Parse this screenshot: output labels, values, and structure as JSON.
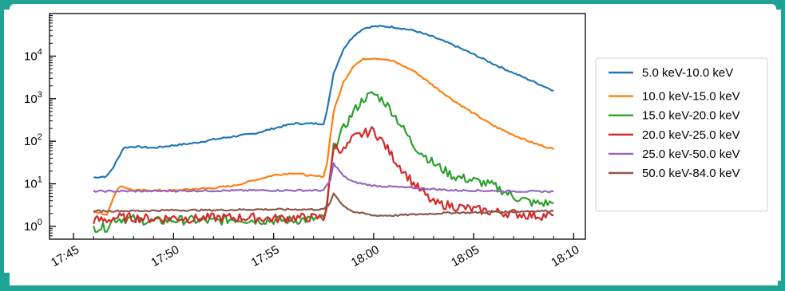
{
  "chart_data": {
    "type": "line",
    "title": "",
    "xlabel": "",
    "ylabel": "",
    "yscale": "log",
    "ylim": [
      0.5,
      100000
    ],
    "x_range": [
      "17:46",
      "18:09"
    ],
    "xlim": [
      "17:45",
      "18:10"
    ],
    "x_ticks": [
      "17:45",
      "17:50",
      "17:55",
      "18:00",
      "18:05",
      "18:10"
    ],
    "y_ticks": [
      {
        "value": 1,
        "base": "10",
        "exp": "0"
      },
      {
        "value": 10,
        "base": "10",
        "exp": "1"
      },
      {
        "value": 100,
        "base": "10",
        "exp": "2"
      },
      {
        "value": 1000,
        "base": "10",
        "exp": "3"
      },
      {
        "value": 10000,
        "base": "10",
        "exp": "4"
      }
    ],
    "grid": false,
    "legend_position": "right",
    "series": [
      {
        "name": "5.0 keV-10.0 keV",
        "color": "#1f77b4",
        "x": [
          "17:46",
          "17:46:40",
          "17:47",
          "17:47:30",
          "17:48",
          "17:49",
          "17:50",
          "17:51",
          "17:52",
          "17:53",
          "17:54",
          "17:55",
          "17:56",
          "17:57",
          "17:57:30",
          "17:57:40",
          "17:58",
          "17:58:30",
          "17:59",
          "17:59:30",
          "18:00",
          "18:00:30",
          "18:01",
          "18:02",
          "18:03",
          "18:04",
          "18:05",
          "18:06",
          "18:07",
          "18:08",
          "18:09"
        ],
        "y": [
          14,
          15,
          25,
          70,
          75,
          70,
          80,
          90,
          110,
          130,
          150,
          200,
          260,
          260,
          260,
          500,
          4000,
          15000,
          30000,
          45000,
          50000,
          50000,
          48000,
          40000,
          28000,
          18000,
          11000,
          6500,
          4000,
          2500,
          1550
        ]
      },
      {
        "name": "10.0 keV-15.0 keV",
        "color": "#ff7f0e",
        "x": [
          "17:46",
          "17:46:40",
          "17:47",
          "17:47:20",
          "17:48",
          "17:49",
          "17:50",
          "17:51",
          "17:52",
          "17:53",
          "17:54",
          "17:55",
          "17:56",
          "17:57",
          "17:57:30",
          "17:57:40",
          "17:58",
          "17:58:30",
          "17:59",
          "17:59:30",
          "18:00",
          "18:00:30",
          "18:01",
          "18:02",
          "18:03",
          "18:04",
          "18:05",
          "18:06",
          "18:07",
          "18:08",
          "18:09"
        ],
        "y": [
          2.2,
          1.9,
          5,
          9,
          7,
          7,
          7,
          7.5,
          8,
          9,
          12,
          16,
          18,
          15,
          15,
          30,
          500,
          2500,
          6000,
          8500,
          9000,
          8500,
          7500,
          4500,
          2000,
          900,
          450,
          230,
          140,
          90,
          65
        ]
      },
      {
        "name": "15.0 keV-20.0 keV",
        "color": "#2ca02c",
        "x": [
          "17:46",
          "17:46:40",
          "17:47",
          "17:48",
          "17:49",
          "17:50",
          "17:51",
          "17:52",
          "17:53",
          "17:54",
          "17:55",
          "17:56",
          "17:57",
          "17:57:30",
          "17:57:40",
          "17:58",
          "17:58:30",
          "17:59",
          "17:59:30",
          "18:00",
          "18:00:30",
          "18:01",
          "18:02",
          "18:03",
          "18:04",
          "18:05",
          "18:06",
          "18:07",
          "18:08",
          "18:09"
        ],
        "y": [
          0.95,
          0.95,
          1.5,
          1.5,
          1.3,
          1.4,
          1.4,
          1.3,
          1.5,
          1.4,
          1.4,
          1.4,
          1.5,
          1.5,
          3,
          70,
          200,
          500,
          1000,
          1300,
          900,
          450,
          80,
          30,
          15,
          12,
          9,
          5,
          3.5,
          3.5
        ]
      },
      {
        "name": "20.0 keV-25.0 keV",
        "color": "#d62728",
        "x": [
          "17:46",
          "17:46:40",
          "17:47",
          "17:48",
          "17:49",
          "17:50",
          "17:51",
          "17:52",
          "17:53",
          "17:54",
          "17:55",
          "17:56",
          "17:57",
          "17:57:30",
          "17:57:40",
          "17:58",
          "17:58:30",
          "17:59",
          "17:59:30",
          "18:00",
          "18:00:30",
          "18:01",
          "18:02",
          "18:03",
          "18:04",
          "18:05",
          "18:06",
          "18:07",
          "18:08",
          "18:09"
        ],
        "y": [
          1.4,
          1.4,
          1.6,
          1.6,
          1.5,
          1.6,
          1.5,
          1.6,
          1.6,
          1.6,
          1.5,
          1.6,
          1.6,
          1.6,
          3,
          80,
          60,
          120,
          150,
          180,
          90,
          40,
          10,
          3.5,
          3,
          2.5,
          2.2,
          2,
          1.8,
          1.8
        ]
      },
      {
        "name": "25.0 keV-50.0 keV",
        "color": "#9467bd",
        "x": [
          "17:46",
          "17:48",
          "17:50",
          "17:52",
          "17:54",
          "17:56",
          "17:57:30",
          "17:57:50",
          "17:58",
          "17:58:30",
          "17:59",
          "18:00",
          "18:01",
          "18:02",
          "18:03",
          "18:04",
          "18:05",
          "18:06",
          "18:07",
          "18:08",
          "18:09"
        ],
        "y": [
          6.7,
          6.7,
          6.8,
          6.9,
          7,
          7,
          7,
          12,
          30,
          15,
          11,
          9,
          8.5,
          8,
          7.5,
          7,
          7,
          6.8,
          6.7,
          6.6,
          6.6
        ]
      },
      {
        "name": "50.0 keV-84.0 keV",
        "color": "#8c564b",
        "x": [
          "17:46",
          "17:48",
          "17:50",
          "17:52",
          "17:54",
          "17:56",
          "17:57:30",
          "17:57:50",
          "17:58",
          "17:58:30",
          "17:59",
          "18:00",
          "18:01",
          "18:02",
          "18:03",
          "18:04",
          "18:05",
          "18:06",
          "18:07",
          "18:08",
          "18:09"
        ],
        "y": [
          2.3,
          2.3,
          2.4,
          2.4,
          2.5,
          2.5,
          2.5,
          3.5,
          6,
          3,
          2.2,
          1.8,
          1.8,
          1.9,
          2,
          2.1,
          2.1,
          2.2,
          2.2,
          2.3,
          2.3
        ]
      }
    ]
  }
}
